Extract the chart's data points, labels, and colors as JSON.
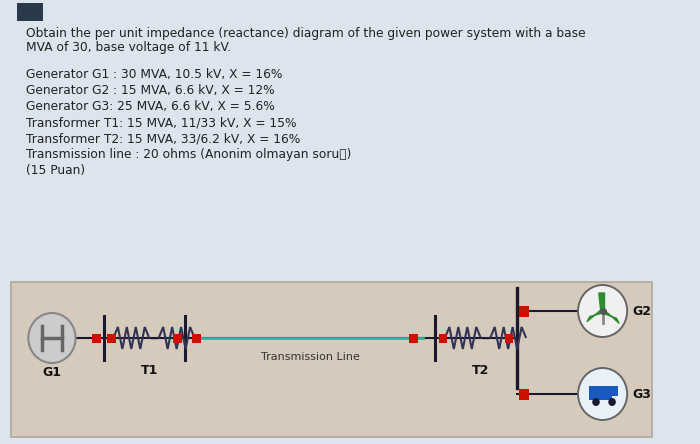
{
  "title_line1": "Obtain the per unit impedance (reactance) diagram of the given power system with a base",
  "title_line2": "MVA of 30, base voltage of 11 kV.",
  "specs": [
    "Generator G1 : 30 MVA, 10.5 kV, X = 16%",
    "Generator G2 : 15 MVA, 6.6 kV, X = 12%",
    "Generator G3: 25 MVA, 6.6 kV, X = 5.6%",
    "Transformer T1: 15 MVA, 11/33 kV, X = 15%",
    "Transformer T2: 15 MVA, 33/6.2 kV, X = 16%",
    "Transmission line : 20 ohms (Anonim olmayan soruⓘ)",
    "(15 Puan)"
  ],
  "bg_page": "#dce4ed",
  "bg_diagram": "#d6cabc",
  "line_color": "#3aada0",
  "wire_color": "#1a1a2e",
  "red_color": "#cc1100",
  "coil_color": "#333355",
  "g1_fill": "#c8c8c8",
  "g1_stroke": "#666666",
  "g2_blade": "#2e8b2e",
  "g3_color": "#1a5abf",
  "label_color": "#111111",
  "text_color": "#222222",
  "diag_border": "#b0a898"
}
